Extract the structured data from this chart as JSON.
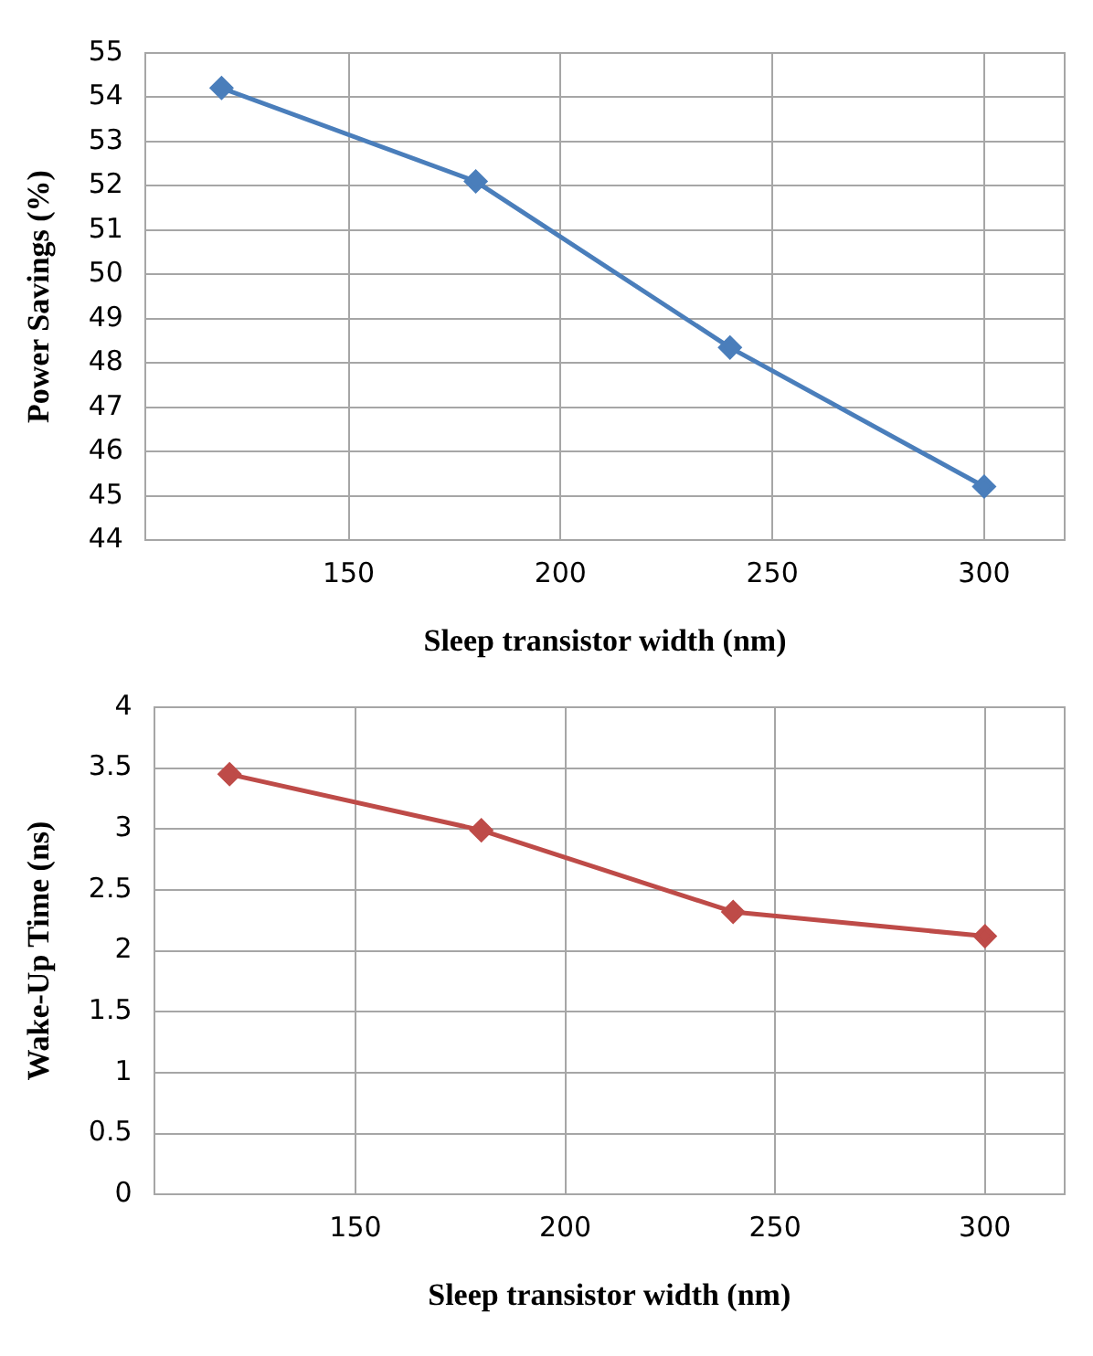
{
  "chart_data": [
    {
      "type": "line",
      "xlabel": "Sleep transistor width (nm)",
      "ylabel": "Power Savings (%)",
      "x": [
        120,
        180,
        240,
        300
      ],
      "series": [
        {
          "color": "#4a7ebb",
          "values": [
            54.21,
            52.1,
            48.35,
            45.21
          ]
        }
      ],
      "xlim": [
        102,
        319
      ],
      "xticks": [
        150,
        200,
        250,
        300
      ],
      "ylim": [
        44,
        55
      ],
      "yticks": [
        44,
        45,
        46,
        47,
        48,
        49,
        50,
        51,
        52,
        53,
        54,
        55
      ],
      "grid": true,
      "legend": false,
      "marker": "diamond",
      "line_style": "solid"
    },
    {
      "type": "line",
      "xlabel": "Sleep transistor width (nm)",
      "ylabel": "Wake-Up Time (ns)",
      "x": [
        120,
        180,
        240,
        300
      ],
      "series": [
        {
          "color": "#be4b48",
          "values": [
            3.45,
            2.99,
            2.32,
            2.12
          ]
        }
      ],
      "xlim": [
        102,
        319
      ],
      "xticks": [
        150,
        200,
        250,
        300
      ],
      "ylim": [
        0,
        4
      ],
      "yticks": [
        0,
        0.5,
        1,
        1.5,
        2,
        2.5,
        3,
        3.5,
        4
      ],
      "grid": true,
      "legend": false,
      "marker": "diamond",
      "line_style": "solid"
    }
  ]
}
